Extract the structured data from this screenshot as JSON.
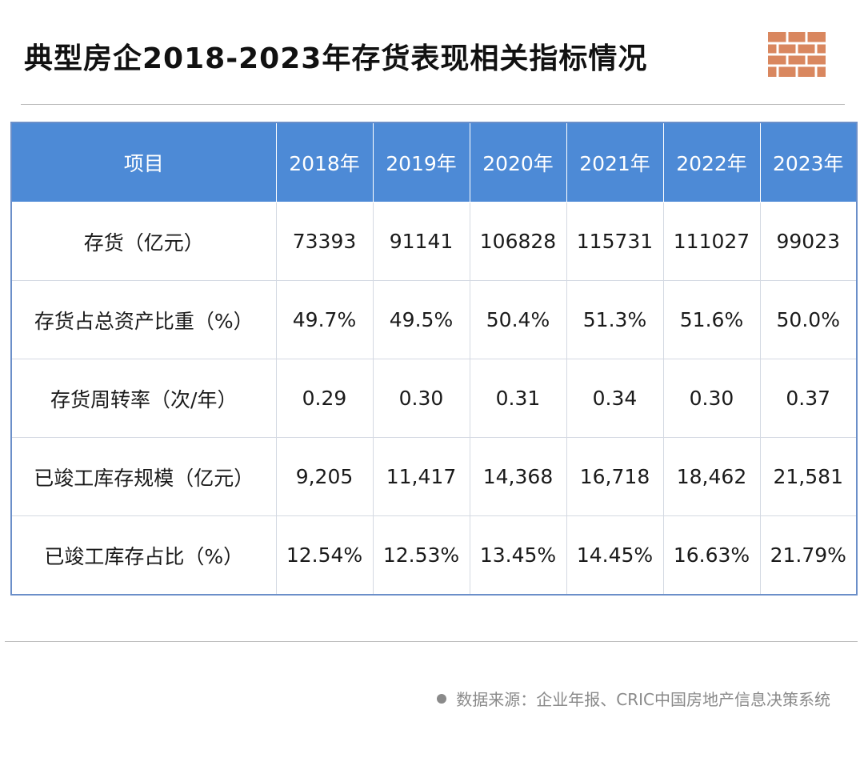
{
  "title": "典型房企2018-2023年存货表现相关指标情况",
  "colors": {
    "header_bg": "#4d8ad6",
    "logo": "#d9875f"
  },
  "logo_icon": "table-grid-icon",
  "table": {
    "headers": [
      "项目",
      "2018年",
      "2019年",
      "2020年",
      "2021年",
      "2022年",
      "2023年"
    ],
    "rows": [
      [
        "存货（亿元）",
        "73393",
        "91141",
        "106828",
        "115731",
        "111027",
        "99023"
      ],
      [
        "存货占总资产比重（%）",
        "49.7%",
        "49.5%",
        "50.4%",
        "51.3%",
        "51.6%",
        "50.0%"
      ],
      [
        "存货周转率（次/年）",
        "0.29",
        "0.30",
        "0.31",
        "0.34",
        "0.30",
        "0.37"
      ],
      [
        "已竣工库存规模（亿元）",
        "9,205",
        "11,417",
        "14,368",
        "16,718",
        "18,462",
        "21,581"
      ],
      [
        "已竣工库存占比（%）",
        "12.54%",
        "12.53%",
        "13.45%",
        "14.45%",
        "16.63%",
        "21.79%"
      ]
    ]
  },
  "footer": {
    "source": "数据来源：企业年报、CRIC中国房地产信息决策系统"
  }
}
